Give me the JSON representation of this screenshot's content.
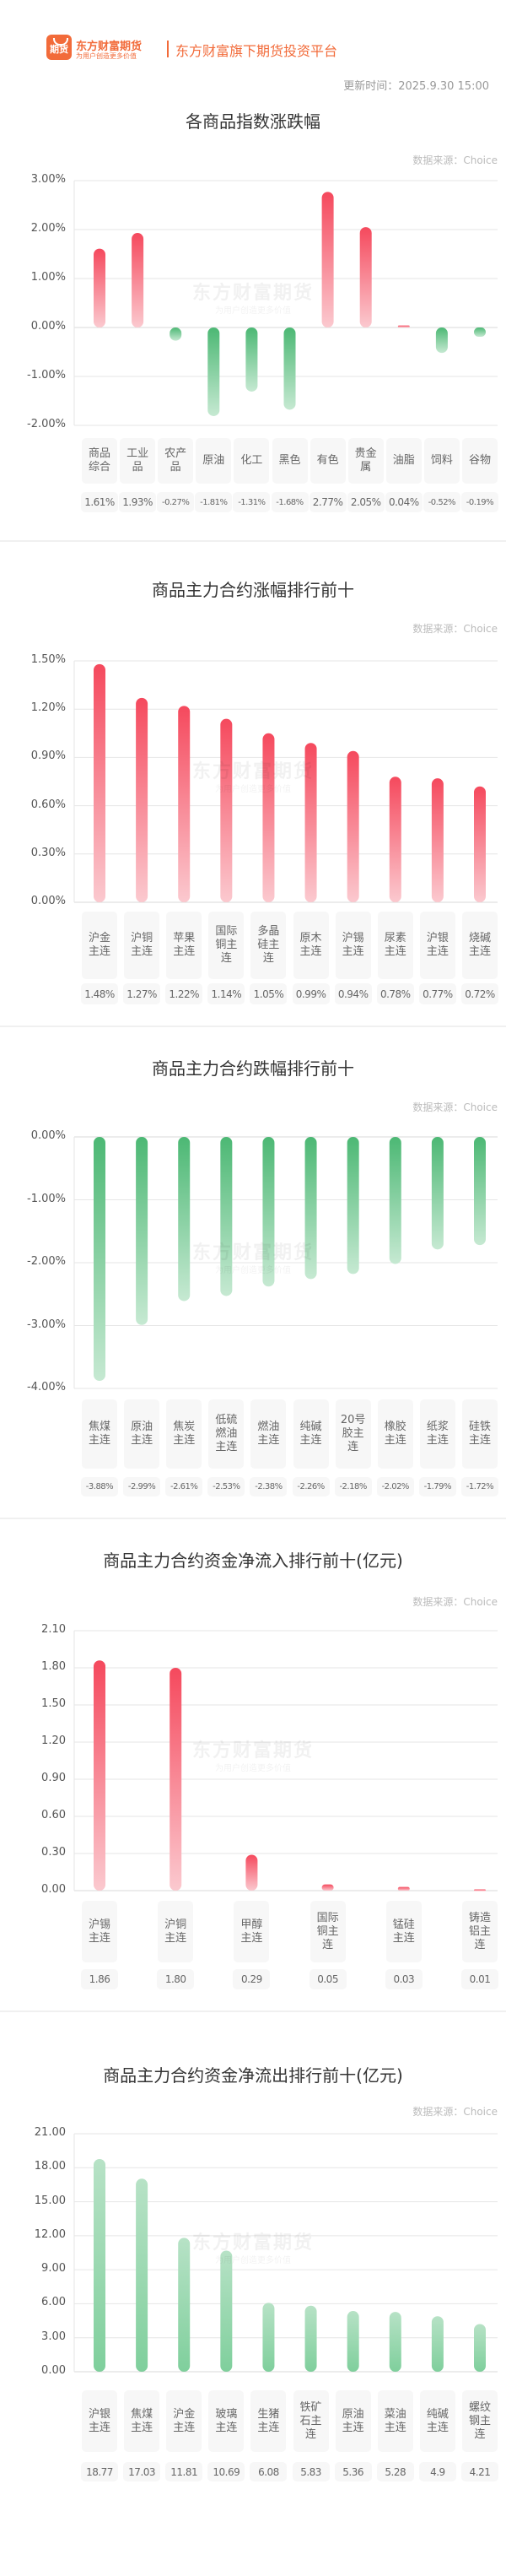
{
  "header": {
    "logo_icon_text": "期货",
    "brand": "东方财富期货",
    "slogan": "为用户创造更多价值",
    "platform": "东方财富旗下期货投资平台",
    "update_time": "更新时间：2025.9.30 15:00",
    "brand_color": "#f26b3a"
  },
  "watermark": {
    "main": "东方财富期货",
    "sub": "为用户创造更多价值"
  },
  "colors": {
    "up": "#f5495d",
    "down": "#4cb874"
  },
  "chart_data": [
    {
      "type": "bar",
      "title": "各商品指数涨跌幅",
      "source": "数据来源：Choice",
      "categories": [
        "商品综合",
        "工业品",
        "农产品",
        "原油",
        "化工",
        "黑色",
        "有色",
        "贵金属",
        "油脂",
        "饲料",
        "谷物"
      ],
      "values": [
        1.61,
        1.93,
        -0.27,
        -1.81,
        -1.31,
        -1.68,
        2.77,
        2.05,
        0.04,
        -0.52,
        -0.19
      ],
      "value_labels": [
        "1.61%",
        "1.93%",
        "-0.27%",
        "-1.81%",
        "-1.31%",
        "-1.68%",
        "2.77%",
        "2.05%",
        "0.04%",
        "-0.52%",
        "-0.19%"
      ],
      "ylim": [
        -2,
        3
      ],
      "yticks": [
        "3.00%",
        "2.00%",
        "1.00%",
        "0.00%",
        "-1.00%",
        "-2.00%"
      ],
      "ytick_values": [
        3,
        2,
        1,
        0,
        -1,
        -2
      ],
      "grid": true
    },
    {
      "type": "bar",
      "title": "商品主力合约涨幅排行前十",
      "source": "数据来源：Choice",
      "categories": [
        "沪金主连",
        "沪铜主连",
        "苹果主连",
        "国际铜主连",
        "多晶硅主连",
        "原木主连",
        "沪锡主连",
        "尿素主连",
        "沪银主连",
        "烧碱主连"
      ],
      "values": [
        1.48,
        1.27,
        1.22,
        1.14,
        1.05,
        0.99,
        0.94,
        0.78,
        0.77,
        0.72
      ],
      "value_labels": [
        "1.48%",
        "1.27%",
        "1.22%",
        "1.14%",
        "1.05%",
        "0.99%",
        "0.94%",
        "0.78%",
        "0.77%",
        "0.72%"
      ],
      "ylim": [
        0,
        1.5
      ],
      "yticks": [
        "1.50%",
        "1.20%",
        "0.90%",
        "0.60%",
        "0.30%",
        "0.00%"
      ],
      "ytick_values": [
        1.5,
        1.2,
        0.9,
        0.6,
        0.3,
        0
      ],
      "grid": true
    },
    {
      "type": "bar",
      "title": "商品主力合约跌幅排行前十",
      "source": "数据来源：Choice",
      "categories": [
        "焦煤主连",
        "原油主连",
        "焦炭主连",
        "低硫燃油主连",
        "燃油主连",
        "纯碱主连",
        "20号胶主连",
        "橡胶主连",
        "纸浆主连",
        "硅铁主连"
      ],
      "values": [
        -3.88,
        -2.99,
        -2.61,
        -2.53,
        -2.38,
        -2.26,
        -2.18,
        -2.02,
        -1.79,
        -1.72
      ],
      "value_labels": [
        "-3.88%",
        "-2.99%",
        "-2.61%",
        "-2.53%",
        "-2.38%",
        "-2.26%",
        "-2.18%",
        "-2.02%",
        "-1.79%",
        "-1.72%"
      ],
      "ylim": [
        -4,
        0
      ],
      "yticks": [
        "0.00%",
        "-1.00%",
        "-2.00%",
        "-3.00%",
        "-4.00%"
      ],
      "ytick_values": [
        0,
        -1,
        -2,
        -3,
        -4
      ],
      "grid": true
    },
    {
      "type": "bar",
      "title": "商品主力合约资金净流入排行前十(亿元)",
      "source": "数据来源：Choice",
      "categories": [
        "沪锡主连",
        "沪铜主连",
        "甲醇主连",
        "国际铜主连",
        "锰硅主连",
        "铸造铝主连"
      ],
      "values": [
        1.86,
        1.8,
        0.29,
        0.05,
        0.03,
        0.01
      ],
      "value_labels": [
        "1.86",
        "1.80",
        "0.29",
        "0.05",
        "0.03",
        "0.01"
      ],
      "ylim": [
        0,
        2.1
      ],
      "yticks": [
        "2.10",
        "1.80",
        "1.50",
        "1.20",
        "0.90",
        "0.60",
        "0.30",
        "0.00"
      ],
      "ytick_values": [
        2.1,
        1.8,
        1.5,
        1.2,
        0.9,
        0.6,
        0.3,
        0
      ],
      "grid": true
    },
    {
      "type": "bar",
      "title": "商品主力合约资金净流出排行前十(亿元)",
      "source": "数据来源：Choice",
      "categories": [
        "沪银主连",
        "焦煤主连",
        "沪金主连",
        "玻璃主连",
        "生猪主连",
        "铁矿石主连",
        "原油主连",
        "菜油主连",
        "纯碱主连",
        "螺纹钢主连"
      ],
      "values": [
        18.77,
        17.03,
        11.81,
        10.69,
        6.08,
        5.83,
        5.36,
        5.28,
        4.9,
        4.21
      ],
      "value_labels": [
        "18.77",
        "17.03",
        "11.81",
        "10.69",
        "6.08",
        "5.83",
        "5.36",
        "5.28",
        "4.9",
        "4.21"
      ],
      "ylim": [
        0,
        21
      ],
      "yticks": [
        "21.00",
        "18.00",
        "15.00",
        "12.00",
        "9.00",
        "6.00",
        "3.00",
        "0.00"
      ],
      "ytick_values": [
        21,
        18,
        15,
        12,
        9,
        6,
        3,
        0
      ],
      "grid": true,
      "bar_color": "down"
    }
  ]
}
